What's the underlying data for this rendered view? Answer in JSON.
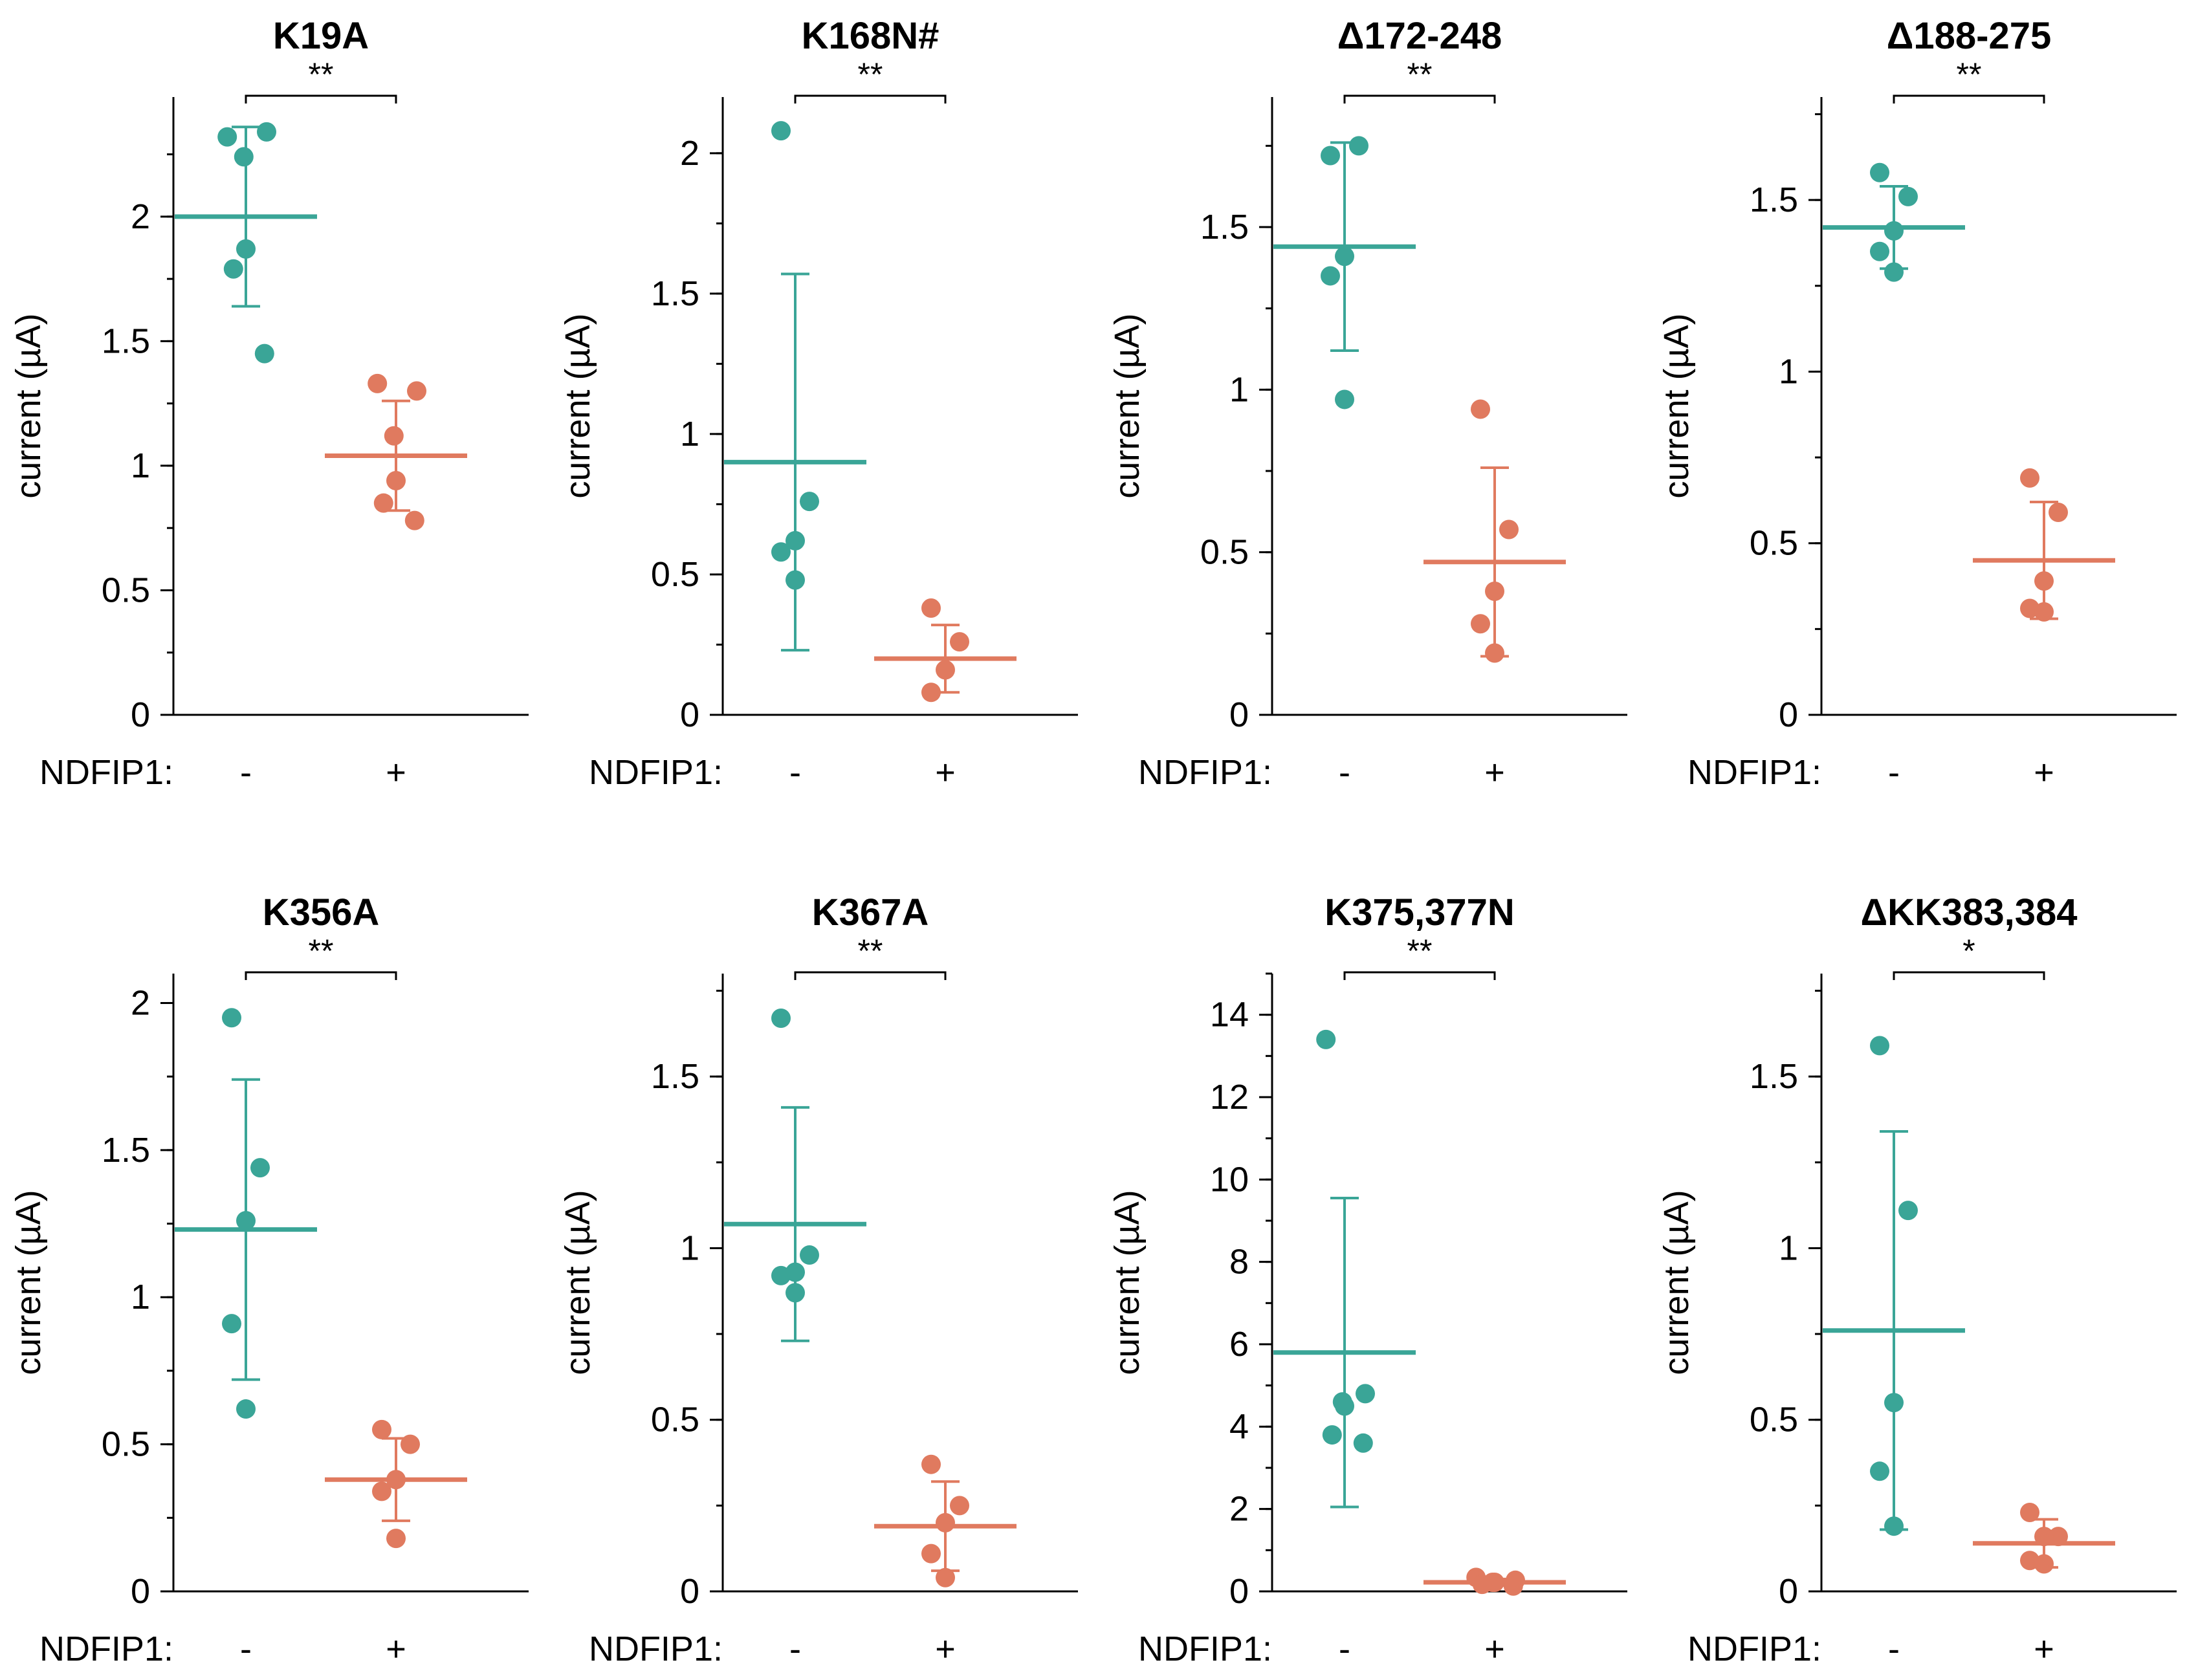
{
  "colors": {
    "minus": "#3aa597",
    "plus": "#e07a5f",
    "axis": "#000000"
  },
  "shared": {
    "ylabel": "current (µA)",
    "condition_label": "NDFIP1:",
    "groups": [
      "-",
      "+"
    ]
  },
  "chart_data": [
    {
      "type": "scatter",
      "title": "K19A",
      "ylim": [
        0,
        2.5
      ],
      "ymax_axis": 2.48,
      "yticks": [
        0,
        0.5,
        1,
        1.5,
        2
      ],
      "ytick_labels": [
        "0",
        "0.5",
        "1",
        "1.5",
        "2"
      ],
      "minor_step": 0.25,
      "significance": "**",
      "series": [
        {
          "name": "-",
          "points": [
            2.32,
            2.34,
            2.24,
            1.87,
            1.79,
            1.45
          ],
          "mean": 2.0,
          "sd": 0.36
        },
        {
          "name": "+",
          "points": [
            1.33,
            1.3,
            1.12,
            0.94,
            0.85,
            0.78
          ],
          "mean": 1.04,
          "sd": 0.22
        }
      ]
    },
    {
      "type": "scatter",
      "title": "K168N#",
      "ylim": [
        0,
        2.2
      ],
      "ymax_axis": 2.2,
      "yticks": [
        0,
        0.5,
        1,
        1.5,
        2
      ],
      "ytick_labels": [
        "0",
        "0.5",
        "1",
        "1.5",
        "2"
      ],
      "minor_step": 0.25,
      "significance": "**",
      "series": [
        {
          "name": "-",
          "points": [
            2.08,
            0.76,
            0.62,
            0.58,
            0.48
          ],
          "mean": 0.9,
          "sd": 0.67
        },
        {
          "name": "+",
          "points": [
            0.38,
            0.26,
            0.16,
            0.08
          ],
          "mean": 0.2,
          "sd": 0.12
        }
      ]
    },
    {
      "type": "scatter",
      "title": "Δ172-248",
      "ylim": [
        0,
        1.9
      ],
      "ymax_axis": 1.9,
      "yticks": [
        0,
        0.5,
        1,
        1.5
      ],
      "ytick_labels": [
        "0",
        "0.5",
        "1",
        "1.5"
      ],
      "minor_step": 0.25,
      "significance": "**",
      "series": [
        {
          "name": "-",
          "points": [
            1.72,
            1.75,
            1.41,
            1.35,
            0.97
          ],
          "mean": 1.44,
          "sd": 0.32
        },
        {
          "name": "+",
          "points": [
            0.94,
            0.57,
            0.38,
            0.28,
            0.19
          ],
          "mean": 0.47,
          "sd": 0.29
        }
      ]
    },
    {
      "type": "scatter",
      "title": "Δ188-275",
      "ylim": [
        0,
        1.8
      ],
      "ymax_axis": 1.8,
      "yticks": [
        0,
        0.5,
        1,
        1.5
      ],
      "ytick_labels": [
        "0",
        "0.5",
        "1",
        "1.5"
      ],
      "minor_step": 0.25,
      "significance": "**",
      "series": [
        {
          "name": "-",
          "points": [
            1.58,
            1.51,
            1.41,
            1.35,
            1.29
          ],
          "mean": 1.42,
          "sd": 0.12
        },
        {
          "name": "+",
          "points": [
            0.69,
            0.59,
            0.39,
            0.31,
            0.3
          ],
          "mean": 0.45,
          "sd": 0.17
        }
      ]
    },
    {
      "type": "scatter",
      "title": "K356A",
      "ylim": [
        0,
        2.1
      ],
      "ymax_axis": 2.1,
      "yticks": [
        0,
        0.5,
        1,
        1.5,
        2
      ],
      "ytick_labels": [
        "0",
        "0.5",
        "1",
        "1.5",
        "2"
      ],
      "minor_step": 0.25,
      "significance": "**",
      "series": [
        {
          "name": "-",
          "points": [
            1.95,
            1.44,
            1.26,
            0.91,
            0.62
          ],
          "mean": 1.23,
          "sd": 0.51
        },
        {
          "name": "+",
          "points": [
            0.55,
            0.5,
            0.38,
            0.34,
            0.18
          ],
          "mean": 0.38,
          "sd": 0.14
        }
      ]
    },
    {
      "type": "scatter",
      "title": "K367A",
      "ylim": [
        0,
        1.8
      ],
      "ymax_axis": 1.8,
      "yticks": [
        0,
        0.5,
        1,
        1.5
      ],
      "ytick_labels": [
        "0",
        "0.5",
        "1",
        "1.5"
      ],
      "minor_step": 0.25,
      "significance": "**",
      "series": [
        {
          "name": "-",
          "points": [
            1.67,
            0.98,
            0.93,
            0.92,
            0.87
          ],
          "mean": 1.07,
          "sd": 0.34
        },
        {
          "name": "+",
          "points": [
            0.37,
            0.25,
            0.2,
            0.11,
            0.04
          ],
          "mean": 0.19,
          "sd": 0.13
        }
      ]
    },
    {
      "type": "scatter",
      "title": "K375,377N",
      "ylim": [
        0,
        15
      ],
      "ymax_axis": 15,
      "yticks": [
        0,
        2,
        4,
        6,
        8,
        10,
        12,
        14
      ],
      "ytick_labels": [
        "0",
        "2",
        "4",
        "6",
        "8",
        "10",
        "12",
        "14"
      ],
      "minor_step": 1,
      "significance": "**",
      "series": [
        {
          "name": "-",
          "points": [
            13.4,
            4.8,
            4.6,
            4.5,
            3.8,
            3.6
          ],
          "mean": 5.8,
          "sd": 3.75
        },
        {
          "name": "+",
          "points": [
            0.34,
            0.27,
            0.22,
            0.22,
            0.17,
            0.13
          ],
          "mean": 0.22,
          "sd": 0.08
        }
      ]
    },
    {
      "type": "scatter",
      "title": "ΔKK383,384",
      "ylim": [
        0,
        1.8
      ],
      "ymax_axis": 1.8,
      "yticks": [
        0,
        0.5,
        1,
        1.5
      ],
      "ytick_labels": [
        "0",
        "0.5",
        "1",
        "1.5"
      ],
      "minor_step": 0.25,
      "significance": "*",
      "series": [
        {
          "name": "-",
          "points": [
            1.59,
            1.11,
            0.55,
            0.35,
            0.19
          ],
          "mean": 0.76,
          "sd": 0.58
        },
        {
          "name": "+",
          "points": [
            0.23,
            0.16,
            0.16,
            0.09,
            0.08
          ],
          "mean": 0.14,
          "sd": 0.07
        }
      ]
    }
  ]
}
